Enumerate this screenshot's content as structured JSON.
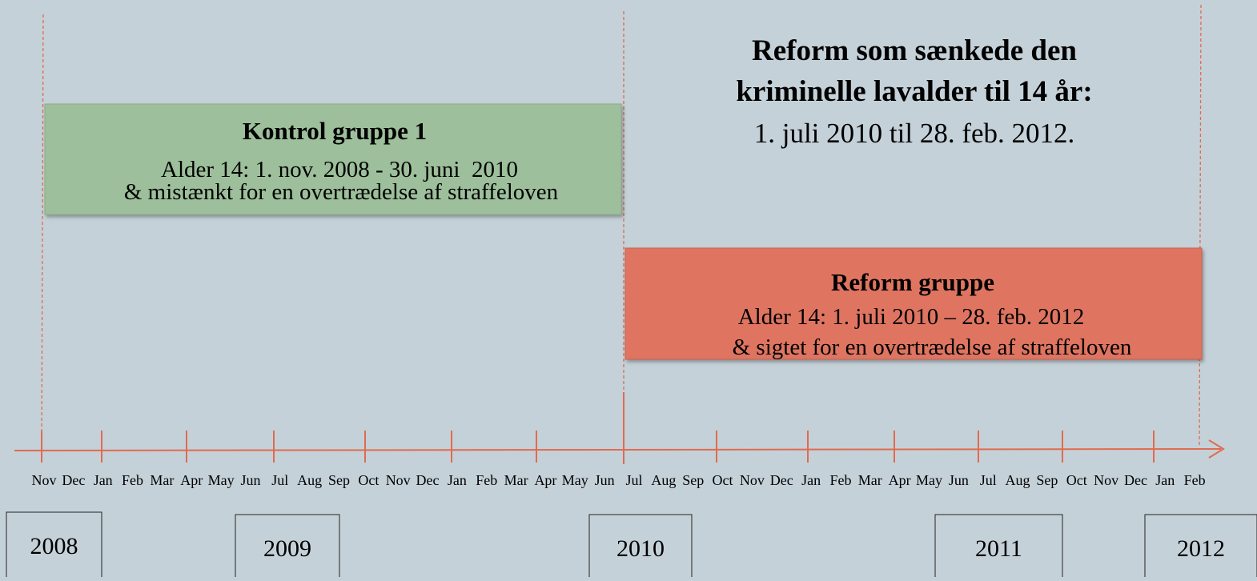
{
  "heading": {
    "line1": "Reform som sænkede den",
    "line2": "kriminelle lavalder til 14 år:",
    "line3": "1. juli 2010 til 28. feb. 2012."
  },
  "control_box": {
    "title": "Kontrol gruppe 1",
    "line1": "Alder 14: 1. nov. 2008 - 30. juni  2010",
    "line2": "& mistænkt for en overtrædelse af straffeloven"
  },
  "reform_box": {
    "title": "Reform gruppe",
    "line1": "Alder 14: 1. juli 2010 – 28. feb. 2012",
    "line2": "& sigtet for en overtrædelse af straffeloven"
  },
  "months": [
    "Nov",
    "Dec",
    "Jan",
    "Feb",
    "Mar",
    "Apr",
    "May",
    "Jun",
    "Jul",
    "Aug",
    "Sep",
    "Oct",
    "Nov",
    "Dec",
    "Jan",
    "Feb",
    "Mar",
    "Apr",
    "May",
    "Jun",
    "Jul",
    "Aug",
    "Sep",
    "Oct",
    "Nov",
    "Dec",
    "Jan",
    "Feb",
    "Mar",
    "Apr",
    "May",
    "Jun",
    "Jul",
    "Aug",
    "Sep",
    "Oct",
    "Nov",
    "Dec",
    "Jan",
    "Feb"
  ],
  "years": [
    "2008",
    "2009",
    "2010",
    "2011",
    "2012"
  ]
}
